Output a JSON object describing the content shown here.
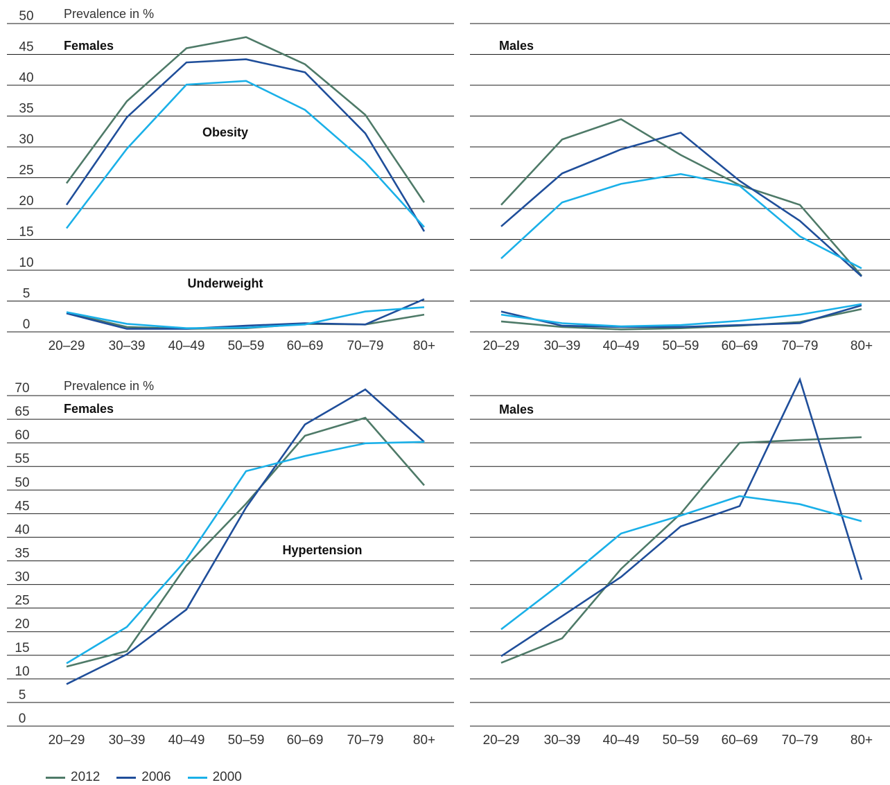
{
  "legend": [
    {
      "label": "2012",
      "color": "#4e7a68"
    },
    {
      "label": "2006",
      "color": "#1f4e9a"
    },
    {
      "label": "2000",
      "color": "#1ab0e8"
    }
  ],
  "chart_data": [
    {
      "type": "line",
      "panel": "top-left",
      "unit_label": "Prevalence in %",
      "group_label": "Females",
      "annotations": [
        "Obesity",
        "Underweight"
      ],
      "x": [
        "20–29",
        "30–39",
        "40–49",
        "50–59",
        "60–69",
        "70–79",
        "80+"
      ],
      "ylim": [
        0,
        50
      ],
      "yticks": [
        0,
        5,
        10,
        15,
        20,
        25,
        30,
        35,
        40,
        45,
        50
      ],
      "series": [
        {
          "name": "2012",
          "indicator": "Obesity",
          "values": [
            24.1,
            37.4,
            46.0,
            47.8,
            43.4,
            35.2,
            21.0
          ]
        },
        {
          "name": "2006",
          "indicator": "Obesity",
          "values": [
            20.6,
            34.8,
            43.7,
            44.2,
            42.1,
            32.2,
            16.3
          ]
        },
        {
          "name": "2000",
          "indicator": "Obesity",
          "values": [
            16.8,
            29.7,
            40.1,
            40.7,
            36.0,
            27.5,
            17.0
          ]
        },
        {
          "name": "2012",
          "indicator": "Underweight",
          "values": [
            3.1,
            0.8,
            0.5,
            0.6,
            1.3,
            1.2,
            2.8
          ]
        },
        {
          "name": "2006",
          "indicator": "Underweight",
          "values": [
            3.0,
            0.5,
            0.5,
            1.0,
            1.4,
            1.2,
            5.3
          ]
        },
        {
          "name": "2000",
          "indicator": "Underweight",
          "values": [
            3.2,
            1.3,
            0.6,
            0.7,
            1.2,
            3.3,
            4.0
          ]
        }
      ]
    },
    {
      "type": "line",
      "panel": "top-right",
      "group_label": "Males",
      "x": [
        "20–29",
        "30–39",
        "40–49",
        "50–59",
        "60–69",
        "70–79",
        "80+"
      ],
      "ylim": [
        0,
        50
      ],
      "series": [
        {
          "name": "2012",
          "indicator": "Obesity",
          "values": [
            20.6,
            31.2,
            34.5,
            28.7,
            23.8,
            20.6,
            9.1
          ]
        },
        {
          "name": "2006",
          "indicator": "Obesity",
          "values": [
            17.1,
            25.7,
            29.6,
            32.3,
            24.5,
            18.0,
            9.0
          ]
        },
        {
          "name": "2000",
          "indicator": "Obesity",
          "values": [
            11.9,
            21.0,
            24.0,
            25.6,
            23.7,
            15.5,
            10.3
          ]
        },
        {
          "name": "2012",
          "indicator": "Underweight",
          "values": [
            1.7,
            0.8,
            0.4,
            0.6,
            1.0,
            1.6,
            3.7
          ]
        },
        {
          "name": "2006",
          "indicator": "Underweight",
          "values": [
            3.3,
            1.0,
            0.8,
            0.8,
            1.1,
            1.4,
            4.3
          ]
        },
        {
          "name": "2000",
          "indicator": "Underweight",
          "values": [
            2.8,
            1.4,
            0.9,
            1.1,
            1.8,
            2.8,
            4.5
          ]
        }
      ]
    },
    {
      "type": "line",
      "panel": "bottom-left",
      "unit_label": "Prevalence in %",
      "group_label": "Females",
      "annotations": [
        "Hypertension"
      ],
      "x": [
        "20–29",
        "30–39",
        "40–49",
        "50–59",
        "60–69",
        "70–79",
        "80+"
      ],
      "ylim": [
        0,
        70
      ],
      "yticks": [
        0,
        5,
        10,
        15,
        20,
        25,
        30,
        35,
        40,
        45,
        50,
        55,
        60,
        65,
        70
      ],
      "series": [
        {
          "name": "2012",
          "values": [
            12.6,
            15.9,
            34.0,
            47.1,
            61.5,
            65.3,
            51.0
          ]
        },
        {
          "name": "2006",
          "values": [
            8.9,
            15.2,
            24.7,
            46.3,
            63.9,
            71.3,
            60.2
          ]
        },
        {
          "name": "2000",
          "values": [
            13.3,
            21.0,
            35.3,
            54.0,
            57.2,
            59.9,
            60.2
          ]
        }
      ]
    },
    {
      "type": "line",
      "panel": "bottom-right",
      "group_label": "Males",
      "x": [
        "20–29",
        "30–39",
        "40–49",
        "50–59",
        "60–69",
        "70–79",
        "80+"
      ],
      "ylim": [
        0,
        70
      ],
      "series": [
        {
          "name": "2012",
          "values": [
            13.4,
            18.6,
            33.3,
            45.0,
            60.0,
            60.6,
            61.2
          ]
        },
        {
          "name": "2006",
          "values": [
            14.8,
            23.3,
            31.6,
            42.3,
            46.6,
            73.4,
            31.0
          ]
        },
        {
          "name": "2000",
          "values": [
            20.5,
            30.4,
            40.8,
            44.6,
            48.7,
            47.0,
            43.4
          ]
        }
      ]
    }
  ]
}
